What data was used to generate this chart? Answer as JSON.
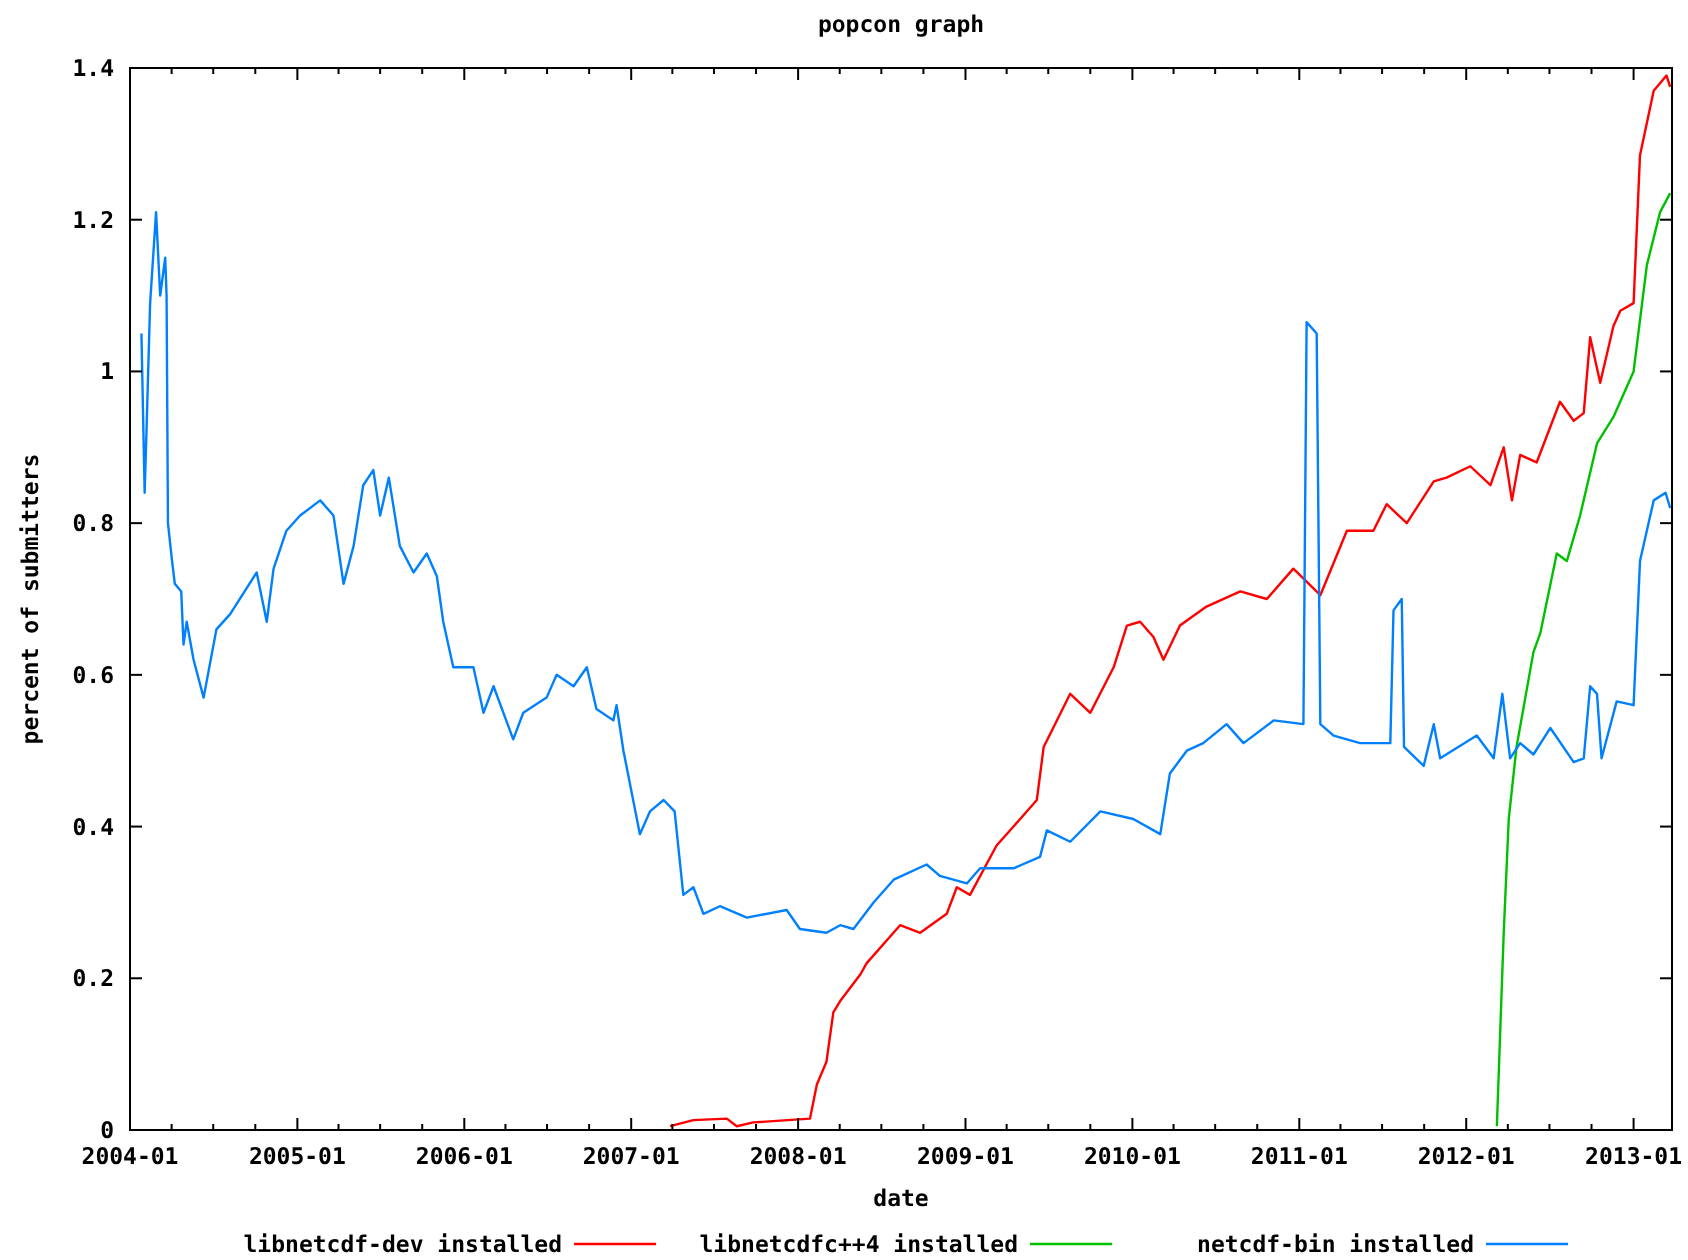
{
  "chart_data": {
    "type": "line",
    "title": "popcon graph",
    "xlabel": "date",
    "ylabel": "percent of submitters",
    "legend": "bottom",
    "xlim": [
      "2004-01-01",
      "2013-03-26"
    ],
    "ylim": [
      0,
      1.4
    ],
    "xticks": [
      "2004-01",
      {
        "value": "2004-04",
        "label": null
      },
      {
        "value": "2004-07",
        "label": null
      },
      {
        "value": "2004-10",
        "label": null
      },
      "2005-01",
      {
        "value": "2005-04",
        "label": null
      },
      {
        "value": "2005-07",
        "label": null
      },
      {
        "value": "2005-10",
        "label": null
      },
      "2006-01",
      {
        "value": "2006-04",
        "label": null
      },
      {
        "value": "2006-07",
        "label": null
      },
      {
        "value": "2006-10",
        "label": null
      },
      "2007-01",
      {
        "value": "2007-04",
        "label": null
      },
      {
        "value": "2007-07",
        "label": null
      },
      {
        "value": "2007-10",
        "label": null
      },
      "2008-01",
      {
        "value": "2008-04",
        "label": null
      },
      {
        "value": "2008-07",
        "label": null
      },
      {
        "value": "2008-10",
        "label": null
      },
      "2009-01",
      {
        "value": "2009-04",
        "label": null
      },
      {
        "value": "2009-07",
        "label": null
      },
      {
        "value": "2009-10",
        "label": null
      },
      "2010-01",
      {
        "value": "2010-04",
        "label": null
      },
      {
        "value": "2010-07",
        "label": null
      },
      {
        "value": "2010-10",
        "label": null
      },
      "2011-01",
      {
        "value": "2011-04",
        "label": null
      },
      {
        "value": "2011-07",
        "label": null
      },
      {
        "value": "2011-10",
        "label": null
      },
      "2012-01",
      {
        "value": "2012-04",
        "label": null
      },
      {
        "value": "2012-07",
        "label": null
      },
      {
        "value": "2012-10",
        "label": null
      },
      "2013-01"
    ],
    "yticks": [
      0,
      0.2,
      0.4,
      0.6,
      0.8,
      1,
      1.2,
      1.4
    ],
    "series": [
      {
        "name": "libnetcdf-dev installed",
        "color": "#ff0000",
        "x": [
          "2007-03-27",
          "2007-05-17",
          "2007-07-29",
          "2007-08-20",
          "2007-09-25",
          "2008-01-27",
          "2008-02-11",
          "2008-03-03",
          "2008-03-18",
          "2008-04-02",
          "2008-05-16",
          "2008-05-30",
          "2008-08-11",
          "2008-09-24",
          "2008-11-21",
          "2008-12-13",
          "2009-01-11",
          "2009-03-10",
          "2009-04-16",
          "2009-06-06",
          "2009-06-21",
          "2009-08-18",
          "2009-10-01",
          "2009-11-21",
          "2009-12-20",
          "2010-01-18",
          "2010-02-16",
          "2010-03-10",
          "2010-04-15",
          "2010-06-12",
          "2010-08-25",
          "2010-10-22",
          "2010-12-19",
          "2011-02-16",
          "2011-04-15",
          "2011-06-12",
          "2011-07-11",
          "2011-08-24",
          "2011-10-22",
          "2011-11-19",
          "2012-01-10",
          "2012-02-23",
          "2012-03-23",
          "2012-04-10",
          "2012-04-28",
          "2012-06-03",
          "2012-07-24",
          "2012-08-23",
          "2012-09-14",
          "2012-09-28",
          "2012-10-20",
          "2012-11-18",
          "2012-12-03",
          "2013-01-01",
          "2013-01-15",
          "2013-02-14",
          "2013-03-14",
          "2013-03-22"
        ],
        "values": [
          0.005,
          0.013,
          0.015,
          0.005,
          0.01,
          0.015,
          0.06,
          0.09,
          0.155,
          0.17,
          0.205,
          0.22,
          0.27,
          0.26,
          0.285,
          0.32,
          0.31,
          0.375,
          0.4,
          0.435,
          0.505,
          0.575,
          0.55,
          0.61,
          0.665,
          0.67,
          0.65,
          0.62,
          0.665,
          0.69,
          0.71,
          0.7,
          0.74,
          0.705,
          0.79,
          0.79,
          0.825,
          0.8,
          0.855,
          0.86,
          0.875,
          0.85,
          0.9,
          0.83,
          0.89,
          0.88,
          0.96,
          0.935,
          0.945,
          1.045,
          0.985,
          1.06,
          1.08,
          1.09,
          1.285,
          1.37,
          1.39,
          1.375
        ]
      },
      {
        "name": "libnetcdfc++4 installed",
        "color": "#00c000",
        "x": [
          "2012-03-08",
          "2012-03-23",
          "2012-04-03",
          "2012-04-20",
          "2012-05-27",
          "2012-06-11",
          "2012-07-17",
          "2012-08-08",
          "2012-09-06",
          "2012-10-13",
          "2012-11-18",
          "2013-01-01",
          "2013-01-30",
          "2013-02-28",
          "2013-03-22"
        ],
        "values": [
          0.005,
          0.26,
          0.41,
          0.505,
          0.63,
          0.655,
          0.76,
          0.75,
          0.81,
          0.905,
          0.94,
          1.0,
          1.14,
          1.21,
          1.235
        ]
      },
      {
        "name": "netcdf-bin installed",
        "color": "#0080ff",
        "x": [
          "2004-01-26",
          "2004-02-02",
          "2004-02-06",
          "2004-02-14",
          "2004-02-27",
          "2004-03-07",
          "2004-03-18",
          "2004-03-21",
          "2004-03-24",
          "2004-04-02",
          "2004-04-08",
          "2004-04-22",
          "2004-04-27",
          "2004-05-04",
          "2004-05-19",
          "2004-06-10",
          "2004-07-08",
          "2004-08-07",
          "2004-10-04",
          "2004-10-26",
          "2004-11-10",
          "2004-12-08",
          "2005-01-07",
          "2005-02-20",
          "2005-03-21",
          "2005-04-12",
          "2005-05-04",
          "2005-05-25",
          "2005-06-16",
          "2005-07-01",
          "2005-07-20",
          "2005-08-13",
          "2005-09-12",
          "2005-10-11",
          "2005-11-02",
          "2005-11-16",
          "2005-12-08",
          "2006-01-21",
          "2006-02-12",
          "2006-03-06",
          "2006-04-18",
          "2006-05-10",
          "2006-06-30",
          "2006-07-22",
          "2006-08-28",
          "2006-09-26",
          "2006-10-17",
          "2006-11-23",
          "2006-11-30",
          "2006-12-15",
          "2007-01-20",
          "2007-02-11",
          "2007-03-13",
          "2007-04-06",
          "2007-04-25",
          "2007-05-17",
          "2007-06-08",
          "2007-07-14",
          "2007-09-11",
          "2007-12-07",
          "2008-01-05",
          "2008-03-03",
          "2008-04-02",
          "2008-05-01",
          "2008-06-14",
          "2008-07-28",
          "2008-10-08",
          "2008-11-06",
          "2009-01-04",
          "2009-02-02",
          "2009-04-16",
          "2009-06-13",
          "2009-06-28",
          "2009-08-18",
          "2009-10-23",
          "2010-01-03",
          "2010-03-03",
          "2010-03-24",
          "2010-04-30",
          "2010-06-05",
          "2010-07-26",
          "2010-09-01",
          "2010-11-06",
          "2011-01-10",
          "2011-01-17",
          "2011-02-08",
          "2011-02-16",
          "2011-03-17",
          "2011-05-14",
          "2011-07-19",
          "2011-07-26",
          "2011-08-13",
          "2011-08-18",
          "2011-09-30",
          "2011-10-22",
          "2011-11-05",
          "2012-01-24",
          "2012-03-01",
          "2012-03-20",
          "2012-04-06",
          "2012-04-28",
          "2012-05-27",
          "2012-07-03",
          "2012-08-23",
          "2012-09-14",
          "2012-09-28",
          "2012-10-13",
          "2012-10-23",
          "2012-11-25",
          "2013-01-01",
          "2013-01-15",
          "2013-02-14",
          "2013-03-12",
          "2013-03-22"
        ],
        "values": [
          1.05,
          0.84,
          0.92,
          1.09,
          1.21,
          1.1,
          1.15,
          1.1,
          0.8,
          0.75,
          0.72,
          0.71,
          0.64,
          0.67,
          0.62,
          0.57,
          0.66,
          0.68,
          0.735,
          0.67,
          0.74,
          0.79,
          0.81,
          0.83,
          0.81,
          0.72,
          0.77,
          0.85,
          0.87,
          0.81,
          0.86,
          0.77,
          0.735,
          0.76,
          0.73,
          0.67,
          0.61,
          0.61,
          0.55,
          0.585,
          0.515,
          0.55,
          0.57,
          0.6,
          0.585,
          0.61,
          0.555,
          0.54,
          0.56,
          0.5,
          0.39,
          0.42,
          0.435,
          0.42,
          0.31,
          0.32,
          0.285,
          0.295,
          0.28,
          0.29,
          0.265,
          0.26,
          0.27,
          0.265,
          0.3,
          0.33,
          0.35,
          0.335,
          0.325,
          0.345,
          0.345,
          0.36,
          0.395,
          0.38,
          0.42,
          0.41,
          0.39,
          0.47,
          0.5,
          0.51,
          0.535,
          0.51,
          0.54,
          0.535,
          1.065,
          1.05,
          0.535,
          0.52,
          0.51,
          0.51,
          0.685,
          0.7,
          0.505,
          0.48,
          0.535,
          0.49,
          0.52,
          0.49,
          0.575,
          0.49,
          0.51,
          0.495,
          0.53,
          0.485,
          0.49,
          0.585,
          0.575,
          0.49,
          0.565,
          0.56,
          0.75,
          0.83,
          0.84,
          0.82
        ]
      }
    ]
  }
}
